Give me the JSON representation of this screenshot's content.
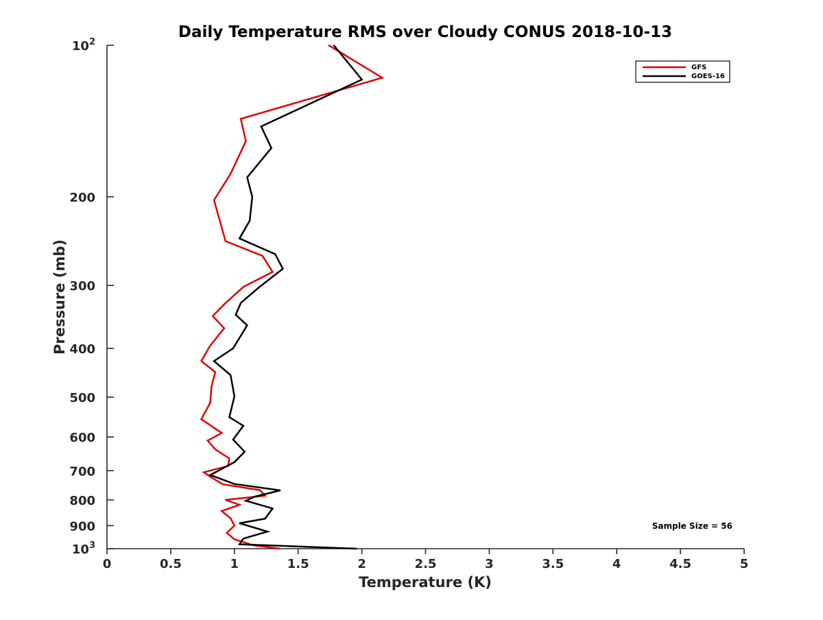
{
  "chart_data": {
    "type": "line",
    "title": "Daily Temperature RMS over Cloudy CONUS 2018-10-13",
    "xlabel": "Temperature (K)",
    "ylabel": "Pressure (mb)",
    "xlim": [
      0,
      5
    ],
    "ylim": [
      100,
      1000
    ],
    "y_scale": "log",
    "y_reversed": true,
    "grid": false,
    "legend_position": "top-right",
    "x_ticks": [
      0,
      0.5,
      1,
      1.5,
      2,
      2.5,
      3,
      3.5,
      4,
      4.5,
      5
    ],
    "x_tick_labels": [
      "0",
      "0.5",
      "1",
      "1.5",
      "2",
      "2.5",
      "3",
      "3.5",
      "4",
      "4.5",
      "5"
    ],
    "y_ticks": [
      {
        "value": 100,
        "base": "10",
        "exp": "2"
      },
      {
        "value": 200,
        "label": "200"
      },
      {
        "value": 300,
        "label": "300"
      },
      {
        "value": 400,
        "label": "400"
      },
      {
        "value": 500,
        "label": "500"
      },
      {
        "value": 600,
        "label": "600"
      },
      {
        "value": 700,
        "label": "700"
      },
      {
        "value": 800,
        "label": "800"
      },
      {
        "value": 900,
        "label": "900"
      },
      {
        "value": 1000,
        "base": "10",
        "exp": "3"
      }
    ],
    "annotation": "Sample Size = 56",
    "series": [
      {
        "name": "GFS",
        "color": "#e00000",
        "points": [
          [
            1.74,
            100
          ],
          [
            2.16,
            116
          ],
          [
            1.05,
            140
          ],
          [
            1.09,
            155
          ],
          [
            0.97,
            180
          ],
          [
            0.84,
            203
          ],
          [
            0.93,
            245
          ],
          [
            1.22,
            262
          ],
          [
            1.3,
            282
          ],
          [
            1.07,
            302
          ],
          [
            0.92,
            327
          ],
          [
            0.83,
            345
          ],
          [
            0.92,
            365
          ],
          [
            0.81,
            395
          ],
          [
            0.74,
            424
          ],
          [
            0.85,
            446
          ],
          [
            0.82,
            476
          ],
          [
            0.81,
            513
          ],
          [
            0.74,
            553
          ],
          [
            0.9,
            589
          ],
          [
            0.79,
            610
          ],
          [
            0.85,
            635
          ],
          [
            0.96,
            662
          ],
          [
            0.95,
            685
          ],
          [
            0.76,
            705
          ],
          [
            0.82,
            722
          ],
          [
            0.91,
            745
          ],
          [
            1.2,
            765
          ],
          [
            1.24,
            785
          ],
          [
            0.93,
            800
          ],
          [
            1.04,
            818
          ],
          [
            0.9,
            842
          ],
          [
            0.97,
            870
          ],
          [
            1.0,
            900
          ],
          [
            0.94,
            930
          ],
          [
            1.0,
            958
          ],
          [
            1.15,
            985
          ],
          [
            1.36,
            1000
          ]
        ]
      },
      {
        "name": "GOES-16",
        "color": "#000000",
        "points": [
          [
            1.78,
            100
          ],
          [
            2.0,
            117
          ],
          [
            1.21,
            145
          ],
          [
            1.29,
            160
          ],
          [
            1.1,
            183
          ],
          [
            1.14,
            200
          ],
          [
            1.12,
            223
          ],
          [
            1.04,
            242
          ],
          [
            1.32,
            260
          ],
          [
            1.38,
            278
          ],
          [
            1.19,
            303
          ],
          [
            1.05,
            325
          ],
          [
            1.01,
            343
          ],
          [
            1.1,
            360
          ],
          [
            0.99,
            400
          ],
          [
            0.84,
            424
          ],
          [
            0.97,
            452
          ],
          [
            1.0,
            498
          ],
          [
            0.96,
            548
          ],
          [
            1.07,
            570
          ],
          [
            0.99,
            607
          ],
          [
            1.08,
            642
          ],
          [
            1.0,
            673
          ],
          [
            0.81,
            714
          ],
          [
            1.0,
            744
          ],
          [
            1.36,
            766
          ],
          [
            1.16,
            788
          ],
          [
            1.09,
            803
          ],
          [
            1.3,
            832
          ],
          [
            1.24,
            872
          ],
          [
            1.04,
            890
          ],
          [
            1.26,
            925
          ],
          [
            1.07,
            955
          ],
          [
            1.04,
            980
          ],
          [
            1.96,
            1000
          ]
        ]
      }
    ]
  }
}
